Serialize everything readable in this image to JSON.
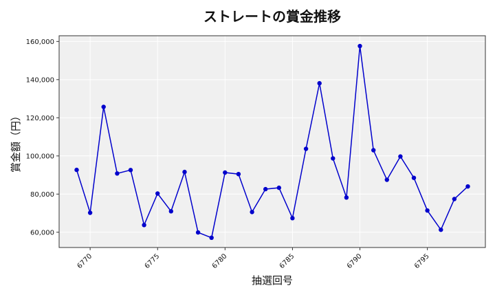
{
  "chart_data": {
    "type": "line",
    "title": "ストレートの賞金推移",
    "xlabel": "抽選回号",
    "ylabel": "賞金額（円）",
    "xlim": [
      6767.7,
      6799.3
    ],
    "ylim": [
      52000,
      163000
    ],
    "x_ticks": [
      6770,
      6775,
      6780,
      6785,
      6790,
      6795
    ],
    "y_ticks": [
      60000,
      80000,
      100000,
      120000,
      140000,
      160000
    ],
    "y_tick_labels": [
      "60,000",
      "80,000",
      "100,000",
      "120,000",
      "140,000",
      "160,000"
    ],
    "grid": true,
    "series": [
      {
        "color": "#0000cc",
        "x": [
          6769,
          6770,
          6771,
          6772,
          6773,
          6774,
          6775,
          6776,
          6777,
          6778,
          6779,
          6780,
          6781,
          6782,
          6783,
          6784,
          6785,
          6786,
          6787,
          6788,
          6789,
          6790,
          6791,
          6792,
          6793,
          6794,
          6795,
          6796,
          6797,
          6798
        ],
        "y": [
          92700,
          70200,
          125700,
          90800,
          92600,
          63800,
          80300,
          71000,
          91600,
          59900,
          57100,
          91300,
          90500,
          70600,
          82600,
          83300,
          67400,
          103700,
          138100,
          98700,
          78200,
          157600,
          103000,
          87500,
          99700,
          88500,
          71400,
          61300,
          77400,
          84000
        ]
      }
    ]
  }
}
